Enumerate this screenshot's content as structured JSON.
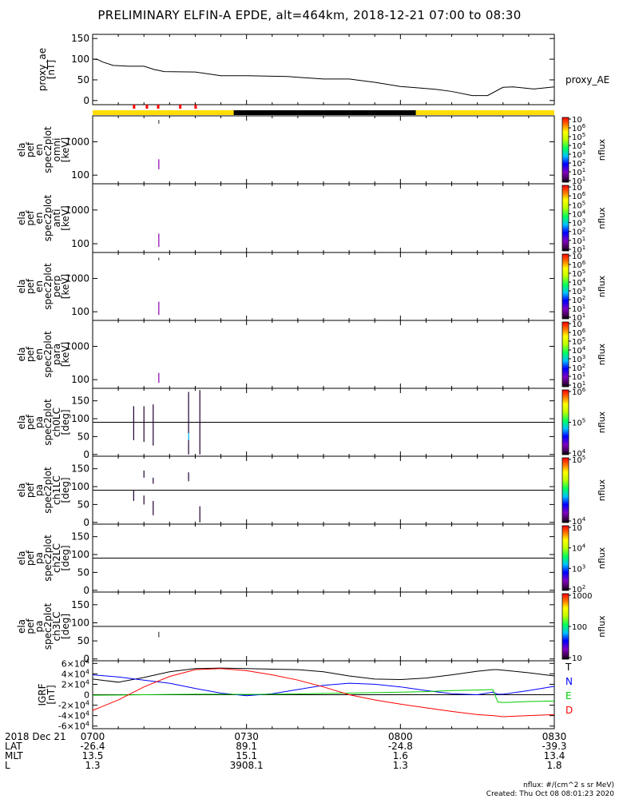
{
  "title": "PRELIMINARY ELFIN-A EPDE, alt=464km, 2018-12-21 07:00 to 08:30",
  "footer": {
    "units": "nflux: #/(cm^2 s sr MeV)",
    "created": "Created: Thu Oct 08 08:01:23 2020"
  },
  "time_axis": {
    "date_label": "2018 Dec 21",
    "ticks": [
      "0700",
      "0730",
      "0800",
      "0830"
    ],
    "tick_minutes": [
      0,
      30,
      60,
      90
    ],
    "range_minutes": [
      0,
      90
    ],
    "rows": [
      {
        "label": "LAT",
        "values": [
          "-26.4",
          "89.1",
          "-24.8",
          "-39.3"
        ]
      },
      {
        "label": "MLT",
        "values": [
          "13.5",
          "15.1",
          "1.6",
          "13.4"
        ]
      },
      {
        "label": "L",
        "values": [
          "1.3",
          "3908.1",
          "1.3",
          "1.8"
        ]
      }
    ]
  },
  "status_bar": {
    "colors": {
      "day": "#ffdd00",
      "shadow": "#000000",
      "marker": "#ff0000"
    },
    "shadow_minutes": [
      27.5,
      63
    ],
    "marker_minutes": [
      8,
      10.5,
      12.7,
      17,
      20
    ]
  },
  "colors": {
    "T": "#000000",
    "N": "#0000ff",
    "E": "#00cc00",
    "D": "#ff0000"
  },
  "chart_data": [
    {
      "type": "line",
      "name": "proxy_ae",
      "ylabel": "proxy_ae\n[nT]",
      "legend": "proxy_AE",
      "ylim": [
        -10,
        160
      ],
      "yticks": [
        0,
        50,
        100,
        150
      ],
      "x_minutes": [
        0,
        1,
        2,
        4,
        7,
        10,
        12,
        14,
        20,
        25,
        30,
        38,
        45,
        50,
        55,
        60,
        64,
        67,
        70,
        74,
        77,
        80,
        82,
        86,
        90
      ],
      "values": [
        100,
        99,
        93,
        85,
        83,
        83,
        75,
        70,
        69,
        60,
        60,
        58,
        52,
        52,
        44,
        34,
        30,
        27,
        22,
        12,
        12,
        32,
        33,
        28,
        33
      ]
    },
    {
      "type": "heatmap",
      "name": "ela_pef_en_spec2plot_omni",
      "ylabel": "ela\npef\nen\nspec2plot\nomni\n[keV]",
      "yscale": "log",
      "ylim": [
        55,
        6000
      ],
      "yticks": [
        100,
        1000
      ],
      "ytick_labels": [
        "100",
        "1000"
      ],
      "colorbar": {
        "label": "nflux",
        "ticks": [
          "10",
          "10",
          "10",
          "10",
          "10",
          "10",
          "10",
          "10"
        ],
        "exps": [
          "1",
          "1",
          "2",
          "3",
          "4",
          "5",
          "6",
          ""
        ]
      },
      "segments": [
        {
          "t": 12.9,
          "y0": 150,
          "y1": 300,
          "color": "#8b00b0"
        },
        {
          "t": 12.9,
          "y0": 3500,
          "y1": 4500,
          "color": "#404040"
        }
      ]
    },
    {
      "type": "heatmap",
      "name": "ela_pef_en_spec2plot_anti",
      "ylabel": "ela\npef\nen\nspec2plot\nanti\n[keV]",
      "yscale": "log",
      "ylim": [
        55,
        6000
      ],
      "yticks": [
        100,
        1000
      ],
      "ytick_labels": [
        "100",
        "1000"
      ],
      "colorbar": {
        "label": "nflux",
        "ticks": [
          "10",
          "10",
          "10",
          "10",
          "10",
          "10",
          "10",
          "10"
        ],
        "exps": [
          "1",
          "1",
          "2",
          "3",
          "4",
          "5",
          "6",
          ""
        ]
      },
      "segments": [
        {
          "t": 12.9,
          "y0": 80,
          "y1": 200,
          "color": "#8b00b0"
        }
      ]
    },
    {
      "type": "heatmap",
      "name": "ela_pef_en_spec2plot_perp",
      "ylabel": "ela\npef\nen\nspec2plot\nperp\n[keV]",
      "yscale": "log",
      "ylim": [
        55,
        6000
      ],
      "yticks": [
        100,
        1000
      ],
      "ytick_labels": [
        "100",
        "1000"
      ],
      "colorbar": {
        "label": "nflux",
        "ticks": [
          "10",
          "10",
          "10",
          "10",
          "10",
          "10",
          "10",
          "10"
        ],
        "exps": [
          "1",
          "1",
          "2",
          "3",
          "4",
          "5",
          "6",
          ""
        ]
      },
      "segments": [
        {
          "t": 12.9,
          "y0": 80,
          "y1": 200,
          "color": "#8b00b0"
        },
        {
          "t": 12.9,
          "y0": 3500,
          "y1": 4200,
          "color": "#404040"
        }
      ]
    },
    {
      "type": "heatmap",
      "name": "ela_pef_en_spec2plot_para",
      "ylabel": "ela\npef\nen\nspec2plot\npara\n[keV]",
      "yscale": "log",
      "ylim": [
        55,
        6000
      ],
      "yticks": [
        100,
        1000
      ],
      "ytick_labels": [
        "100",
        "1000"
      ],
      "colorbar": {
        "label": "nflux",
        "ticks": [
          "10",
          "10",
          "10",
          "10",
          "10",
          "10",
          "10",
          "10"
        ],
        "exps": [
          "1",
          "1",
          "2",
          "3",
          "4",
          "5",
          "6",
          ""
        ]
      },
      "segments": [
        {
          "t": 12.9,
          "y0": 80,
          "y1": 160,
          "color": "#8b00b0"
        }
      ]
    },
    {
      "type": "heatmap",
      "name": "ela_pef_pa_spec2plot_ch0LC",
      "ylabel": "ela\npef\npa\nspec2plot\nch0LC\n[deg]",
      "ylim": [
        -5,
        185
      ],
      "yticks": [
        0,
        50,
        100,
        150
      ],
      "ref_lines": [
        90
      ],
      "colorbar": {
        "label": "nflux",
        "ticks": [
          "10",
          "10",
          "10"
        ],
        "exps": [
          "4",
          "5",
          "6"
        ]
      },
      "segments": [
        {
          "t": 8.0,
          "y0": 40,
          "y1": 135,
          "color": "#200030"
        },
        {
          "t": 10.0,
          "y0": 35,
          "y1": 135,
          "color": "#200030"
        },
        {
          "t": 11.8,
          "y0": 25,
          "y1": 140,
          "color": "#200030"
        },
        {
          "t": 18.7,
          "y0": 0,
          "y1": 175,
          "color": "#200030"
        },
        {
          "t": 18.7,
          "y0": 40,
          "y1": 60,
          "color": "#00c8ff"
        },
        {
          "t": 20.9,
          "y0": 0,
          "y1": 180,
          "color": "#200030"
        }
      ]
    },
    {
      "type": "heatmap",
      "name": "ela_pef_pa_spec2plot_ch1LC",
      "ylabel": "ela\npef\npa\nspec2plot\nch1LC\n[deg]",
      "ylim": [
        -5,
        185
      ],
      "yticks": [
        0,
        50,
        100,
        150
      ],
      "ref_lines": [
        90
      ],
      "colorbar": {
        "label": "nflux",
        "ticks": [
          "10",
          "10"
        ],
        "exps": [
          "4",
          "5"
        ]
      },
      "segments": [
        {
          "t": 8.0,
          "y0": 60,
          "y1": 90,
          "color": "#200030"
        },
        {
          "t": 10.0,
          "y0": 50,
          "y1": 75,
          "color": "#200030"
        },
        {
          "t": 10.0,
          "y0": 125,
          "y1": 145,
          "color": "#200030"
        },
        {
          "t": 11.8,
          "y0": 20,
          "y1": 60,
          "color": "#200030"
        },
        {
          "t": 11.8,
          "y0": 108,
          "y1": 125,
          "color": "#200030"
        },
        {
          "t": 18.7,
          "y0": 115,
          "y1": 140,
          "color": "#200030"
        },
        {
          "t": 20.9,
          "y0": 0,
          "y1": 45,
          "color": "#200030"
        }
      ]
    },
    {
      "type": "heatmap",
      "name": "ela_pef_pa_spec2plot_ch2LC",
      "ylabel": "ela\npef\npa\nspec2plot\nch2LC\n[deg]",
      "ylim": [
        -5,
        185
      ],
      "yticks": [
        0,
        50,
        100,
        150
      ],
      "ref_lines": [
        90
      ],
      "colorbar": {
        "label": "nflux",
        "ticks": [
          "10",
          "10",
          "10",
          "10"
        ],
        "exps": [
          "2",
          "3",
          "4",
          ""
        ]
      },
      "segments": []
    },
    {
      "type": "heatmap",
      "name": "ela_pef_pa_spec2plot_ch3LC",
      "ylabel": "ela\npef\npa\nspec2plot\nch3LC\n[deg]",
      "ylim": [
        -5,
        185
      ],
      "yticks": [
        0,
        50,
        100,
        150
      ],
      "ref_lines": [
        90
      ],
      "colorbar": {
        "label": "nflux",
        "ticks": [
          "10",
          "100",
          "1000"
        ],
        "exps": [
          "",
          "",
          ""
        ]
      },
      "segments": [
        {
          "t": 12.9,
          "y0": 60,
          "y1": 75,
          "color": "#404040"
        }
      ]
    },
    {
      "type": "line",
      "name": "IGRF",
      "ylabel": "IGRF\n[nT]",
      "ylim": [
        -65000,
        65000
      ],
      "yticks": [
        60000,
        40000,
        20000,
        0,
        -20000,
        -40000,
        -60000
      ],
      "ytick_labels": [
        [
          "6",
          "4"
        ],
        [
          "4",
          "4"
        ],
        [
          "2",
          "4"
        ],
        [
          "0",
          ""
        ],
        [
          "-2",
          "4"
        ],
        [
          "-4",
          "4"
        ],
        [
          "-6",
          "4"
        ]
      ],
      "x_minutes": [
        0,
        5,
        10,
        15,
        20,
        25,
        30,
        35,
        40,
        45,
        50,
        55,
        60,
        65,
        70,
        75,
        78,
        79,
        80,
        85,
        90
      ],
      "series": [
        {
          "name": "T",
          "values": [
            30000,
            24000,
            33000,
            44000,
            50000,
            51000,
            50000,
            49000,
            48000,
            44000,
            36000,
            30000,
            29000,
            32000,
            38000,
            45000,
            48000,
            48000,
            47000,
            42000,
            36000
          ]
        },
        {
          "name": "N",
          "values": [
            38000,
            34000,
            28000,
            22000,
            12000,
            3000,
            -2000,
            2000,
            10000,
            18000,
            22000,
            20000,
            15000,
            8000,
            2000,
            0,
            5000,
            1000,
            1000,
            8000,
            16000
          ]
        },
        {
          "name": "E",
          "values": [
            -1000,
            -500,
            0,
            500,
            1000,
            1000,
            500,
            1000,
            1500,
            2500,
            3000,
            4000,
            5000,
            6000,
            8000,
            9000,
            10000,
            -14000,
            -15000,
            -13000,
            -12000
          ]
        },
        {
          "name": "D",
          "values": [
            -30000,
            -10000,
            15000,
            35000,
            48000,
            50000,
            46000,
            38000,
            28000,
            15000,
            0,
            -10000,
            -18000,
            -25000,
            -32000,
            -38000,
            -40000,
            -41000,
            -42000,
            -40000,
            -38000
          ]
        }
      ]
    }
  ]
}
